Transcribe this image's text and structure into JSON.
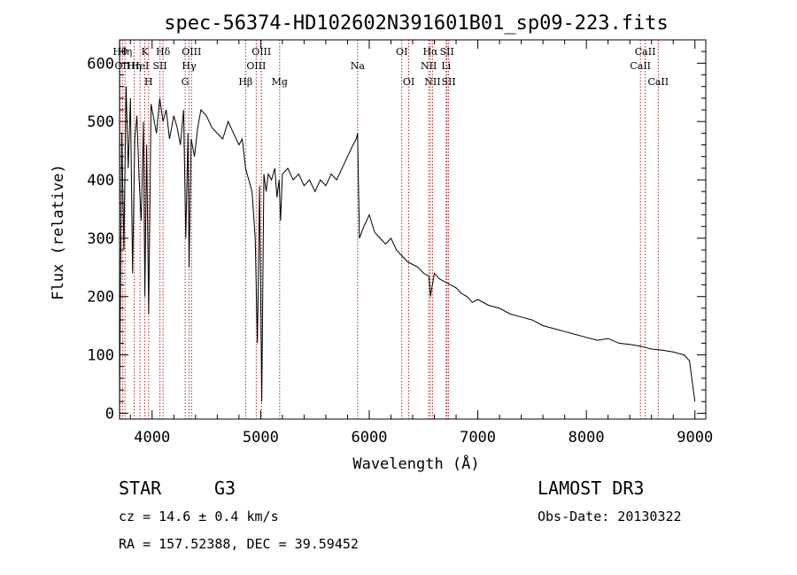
{
  "chart_data": {
    "type": "line",
    "title": "spec-56374-HD102602N391601B01_sp09-223.fits",
    "xlabel": "Wavelength (Å)",
    "ylabel": "Flux (relative)",
    "xlim": [
      3700,
      9100
    ],
    "ylim": [
      -10,
      640
    ],
    "xticks": [
      4000,
      5000,
      6000,
      7000,
      8000,
      9000
    ],
    "yticks": [
      0,
      100,
      200,
      300,
      400,
      500,
      600
    ],
    "grid": false,
    "series": [
      {
        "color": "#000000",
        "x": [
          3700,
          3720,
          3740,
          3760,
          3780,
          3800,
          3820,
          3840,
          3860,
          3880,
          3900,
          3920,
          3933,
          3950,
          3968,
          3990,
          4010,
          4040,
          4070,
          4100,
          4130,
          4160,
          4200,
          4230,
          4260,
          4290,
          4310,
          4330,
          4340,
          4360,
          4390,
          4420,
          4450,
          4500,
          4550,
          4600,
          4650,
          4700,
          4750,
          4800,
          4830,
          4861,
          4890,
          4920,
          4950,
          4970,
          4990,
          5010,
          5030,
          5050,
          5070,
          5100,
          5130,
          5150,
          5170,
          5183,
          5200,
          5250,
          5300,
          5350,
          5400,
          5450,
          5500,
          5550,
          5600,
          5650,
          5700,
          5750,
          5800,
          5850,
          5880,
          5893,
          5910,
          5950,
          6000,
          6050,
          6100,
          6150,
          6200,
          6250,
          6300,
          6350,
          6400,
          6450,
          6500,
          6550,
          6563,
          6600,
          6650,
          6700,
          6750,
          6800,
          6850,
          6900,
          6950,
          7000,
          7100,
          7200,
          7300,
          7400,
          7500,
          7600,
          7700,
          7800,
          7900,
          8000,
          8100,
          8200,
          8300,
          8400,
          8500,
          8600,
          8700,
          8800,
          8900,
          8950,
          9000
        ],
        "values": [
          20,
          480,
          280,
          560,
          420,
          540,
          240,
          470,
          510,
          400,
          330,
          500,
          200,
          460,
          170,
          530,
          510,
          480,
          540,
          500,
          520,
          470,
          510,
          490,
          460,
          520,
          300,
          480,
          250,
          470,
          440,
          490,
          520,
          510,
          490,
          480,
          470,
          500,
          480,
          460,
          470,
          420,
          400,
          380,
          300,
          120,
          390,
          20,
          410,
          380,
          410,
          400,
          420,
          370,
          400,
          330,
          410,
          420,
          400,
          410,
          390,
          400,
          380,
          400,
          390,
          410,
          400,
          420,
          440,
          460,
          470,
          480,
          300,
          320,
          340,
          310,
          300,
          290,
          300,
          280,
          270,
          260,
          255,
          250,
          240,
          235,
          200,
          240,
          230,
          225,
          220,
          215,
          205,
          200,
          190,
          195,
          185,
          180,
          170,
          165,
          160,
          150,
          145,
          140,
          135,
          130,
          125,
          128,
          120,
          118,
          115,
          110,
          108,
          105,
          100,
          90,
          20
        ]
      }
    ],
    "line_marks": [
      {
        "x": 3704,
        "row": 1,
        "label": "Hθ"
      },
      {
        "x": 3727,
        "row": 2,
        "label": "OII"
      },
      {
        "x": 3750,
        "row": 1,
        "label": "Hη"
      },
      {
        "x": 3835,
        "row": 2,
        "label": "Hη"
      },
      {
        "x": 3889,
        "row": 2,
        "label": "HeI"
      },
      {
        "x": 3933,
        "row": 1,
        "label": "K"
      },
      {
        "x": 3968,
        "row": 3,
        "label": "H"
      },
      {
        "x": 4072,
        "row": 2,
        "label": "SII"
      },
      {
        "x": 4101,
        "row": 1,
        "label": "Hδ"
      },
      {
        "x": 4304,
        "row": 3,
        "label": "G"
      },
      {
        "x": 4340,
        "row": 2,
        "label": "Hγ"
      },
      {
        "x": 4363,
        "row": 1,
        "label": "OIII"
      },
      {
        "x": 4861,
        "row": 3,
        "label": "Hβ"
      },
      {
        "x": 4959,
        "row": 2,
        "label": "OIII"
      },
      {
        "x": 5007,
        "row": 1,
        "label": "OIII"
      },
      {
        "x": 5175,
        "row": 3,
        "label": "Mg"
      },
      {
        "x": 5893,
        "row": 2,
        "label": "Na"
      },
      {
        "x": 6300,
        "row": 1,
        "label": "OI"
      },
      {
        "x": 6364,
        "row": 3,
        "label": "OI"
      },
      {
        "x": 6548,
        "row": 2,
        "label": "NII"
      },
      {
        "x": 6563,
        "row": 1,
        "label": "Hα"
      },
      {
        "x": 6583,
        "row": 3,
        "label": "NII"
      },
      {
        "x": 6708,
        "row": 2,
        "label": "Li"
      },
      {
        "x": 6716,
        "row": 1,
        "label": "SII"
      },
      {
        "x": 6731,
        "row": 3,
        "label": "SII"
      },
      {
        "x": 8498,
        "row": 2,
        "label": "CaII"
      },
      {
        "x": 8542,
        "row": 1,
        "label": "CaII"
      },
      {
        "x": 8662,
        "row": 3,
        "label": "CaII"
      }
    ],
    "line_mark_color": "#b22222"
  },
  "info": {
    "object_class": "STAR",
    "subclass": "G3",
    "survey": "LAMOST DR3",
    "redshift_text": "cz = 14.6 ± 0.4 km/s",
    "obs_date_text": "Obs-Date: 20130322",
    "coords_text": "RA = 157.52388, DEC =  39.59452"
  }
}
